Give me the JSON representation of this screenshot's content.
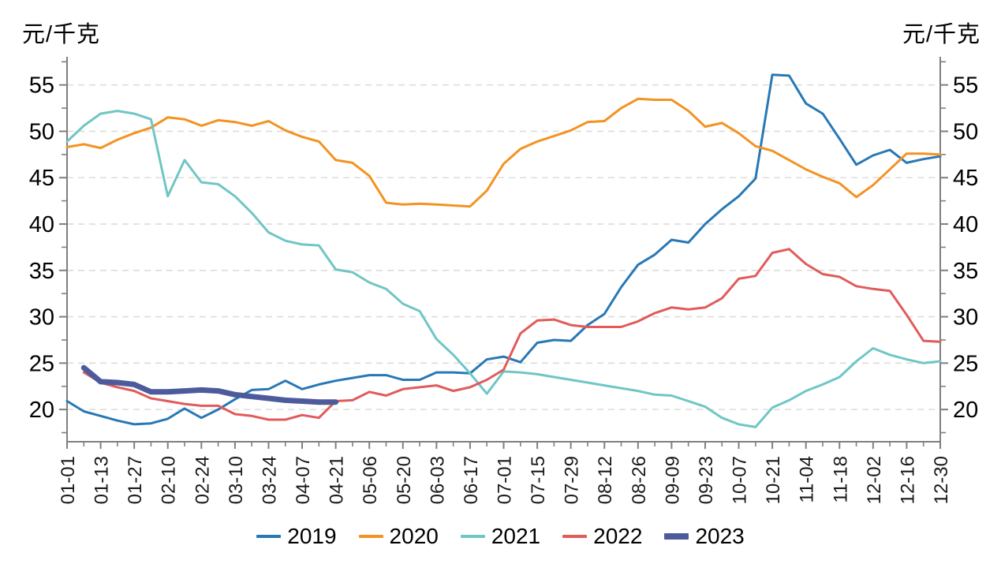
{
  "chart_data": {
    "type": "line",
    "y_axis": {
      "unit_label_left": "元/千克",
      "unit_label_right": "元/千克",
      "ticks": [
        20,
        25,
        30,
        35,
        40,
        45,
        50,
        55
      ],
      "minor_tick_step": 2.5,
      "range": [
        16.5,
        58.1
      ],
      "grid": "dashed-horizontal"
    },
    "x_axis": {
      "tick_labels": [
        "01-01",
        "01-13",
        "01-27",
        "02-10",
        "02-24",
        "03-10",
        "03-24",
        "04-07",
        "04-21",
        "05-06",
        "05-20",
        "06-03",
        "06-17",
        "07-01",
        "07-15",
        "07-29",
        "08-12",
        "08-26",
        "09-09",
        "09-23",
        "10-07",
        "10-21",
        "11-04",
        "11-18",
        "12-02",
        "12-16",
        "12-30"
      ],
      "points_per_label_interval": 2,
      "label_rotation_deg": -90
    },
    "legend_position": "bottom",
    "series": [
      {
        "name": "2019",
        "color": "#2878b5",
        "line_width": 3,
        "values": [
          20.9,
          19.8,
          19.3,
          18.8,
          18.4,
          18.5,
          19.0,
          20.1,
          19.1,
          20.0,
          21.1,
          22.1,
          22.2,
          23.1,
          22.2,
          22.7,
          23.1,
          23.4,
          23.7,
          23.7,
          23.2,
          23.2,
          24.0,
          24.0,
          23.9,
          25.4,
          25.7,
          25.1,
          27.2,
          27.5,
          27.4,
          29.1,
          30.3,
          33.2,
          35.6,
          36.7,
          38.3,
          38.0,
          40.0,
          41.6,
          43.0,
          44.9,
          56.1,
          56.0,
          53.0,
          51.9,
          49.2,
          46.4,
          47.4,
          48.0,
          46.6,
          47.0,
          47.3
        ]
      },
      {
        "name": "2020",
        "color": "#f39322",
        "line_width": 3,
        "values": [
          48.3,
          48.6,
          48.2,
          49.1,
          49.8,
          50.4,
          51.5,
          51.3,
          50.6,
          51.2,
          51.0,
          50.6,
          51.1,
          50.1,
          49.4,
          48.9,
          46.9,
          46.6,
          45.2,
          42.3,
          42.1,
          42.2,
          42.1,
          42.0,
          41.9,
          43.6,
          46.5,
          48.1,
          48.9,
          49.5,
          50.1,
          51.0,
          51.1,
          52.5,
          53.5,
          53.4,
          53.4,
          52.2,
          50.5,
          50.9,
          49.8,
          48.4,
          47.9,
          46.9,
          45.9,
          45.1,
          44.4,
          42.9,
          44.2,
          45.9,
          47.6,
          47.6,
          47.5
        ]
      },
      {
        "name": "2021",
        "color": "#70c6c5",
        "line_width": 3,
        "values": [
          48.9,
          50.6,
          51.9,
          52.2,
          51.9,
          51.3,
          43.0,
          46.9,
          44.5,
          44.3,
          43.0,
          41.2,
          39.1,
          38.2,
          37.8,
          37.7,
          35.1,
          34.8,
          33.7,
          33.0,
          31.4,
          30.6,
          27.6,
          25.9,
          23.9,
          21.7,
          24.1,
          24.0,
          23.8,
          23.5,
          23.2,
          22.9,
          22.6,
          22.3,
          22.0,
          21.6,
          21.5,
          20.9,
          20.3,
          19.1,
          18.4,
          18.1,
          20.2,
          21.0,
          22.0,
          22.7,
          23.5,
          25.2,
          26.6,
          25.9,
          25.4,
          25.0,
          25.2
        ]
      },
      {
        "name": "2022",
        "color": "#e15b5b",
        "line_width": 3,
        "values": [
          null,
          24.0,
          22.9,
          22.4,
          22.0,
          21.2,
          20.9,
          20.6,
          20.4,
          20.4,
          19.5,
          19.3,
          18.9,
          18.9,
          19.4,
          19.1,
          20.9,
          21.0,
          21.9,
          21.5,
          22.2,
          22.4,
          22.6,
          22.0,
          22.4,
          23.2,
          24.3,
          28.2,
          29.6,
          29.7,
          29.1,
          28.9,
          28.9,
          28.9,
          29.5,
          30.4,
          31.0,
          30.8,
          31.0,
          32.0,
          34.1,
          34.4,
          36.9,
          37.3,
          35.7,
          34.6,
          34.3,
          33.3,
          33.0,
          32.8,
          30.2,
          27.4,
          27.3
        ]
      },
      {
        "name": "2023",
        "color": "#4d5b9d",
        "line_width": 7,
        "values": [
          null,
          24.5,
          23.0,
          22.9,
          22.7,
          21.9,
          21.9,
          22.0,
          22.1,
          22.0,
          21.6,
          21.4,
          21.2,
          21.0,
          20.9,
          20.8,
          20.8,
          null,
          null,
          null,
          null,
          null,
          null,
          null,
          null,
          null,
          null,
          null,
          null,
          null,
          null,
          null,
          null,
          null,
          null,
          null,
          null,
          null,
          null,
          null,
          null,
          null,
          null,
          null,
          null,
          null,
          null,
          null,
          null,
          null,
          null,
          null,
          null
        ]
      }
    ]
  }
}
